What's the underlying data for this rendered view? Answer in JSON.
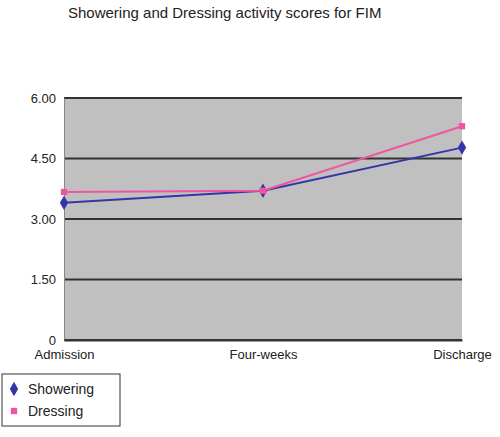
{
  "chart_data": {
    "type": "line",
    "title": "Showering and Dressing activity scores for FIM",
    "categories": [
      "Admission",
      "Four-weeks",
      "Discharge"
    ],
    "series": [
      {
        "name": "Showering",
        "color": "#3535a8",
        "marker": "diamond",
        "values": [
          3.4,
          3.7,
          4.77
        ]
      },
      {
        "name": "Dressing",
        "color": "#f0569f",
        "marker": "square",
        "values": [
          3.67,
          3.7,
          5.3
        ]
      }
    ],
    "ylim": [
      0,
      6
    ],
    "yticks": [
      0,
      {
        "value": 1.5,
        "label": "1.50"
      },
      {
        "value": 3,
        "label": "3.00"
      },
      {
        "value": 4.5,
        "label": "4.50"
      },
      {
        "value": 6,
        "label": "6.00"
      }
    ],
    "grid": true,
    "legend": "bottom-left"
  }
}
